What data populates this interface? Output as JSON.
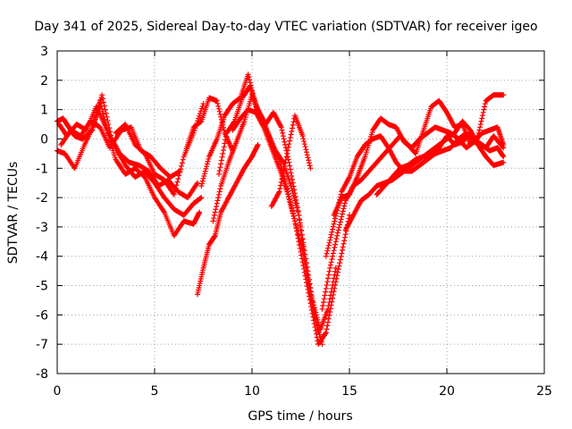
{
  "chart_data": {
    "type": "scatter",
    "title": "Day 341 of 2025, Sidereal Day-to-day VTEC variation (SDTVAR) for receiver igeo",
    "xlabel": "GPS time / hours",
    "ylabel": "SDTVAR / TECUs",
    "xlim": [
      0,
      25
    ],
    "ylim": [
      -8,
      3
    ],
    "xticks": [
      0,
      5,
      10,
      15,
      20,
      25
    ],
    "yticks": [
      -8,
      -7,
      -6,
      -5,
      -4,
      -3,
      -2,
      -1,
      0,
      1,
      2,
      3
    ],
    "grid": true,
    "marker": "+",
    "color": "#ff0000",
    "series": [
      {
        "x": [
          0.0,
          0.3,
          0.6,
          0.9,
          1.3,
          1.8,
          2.2,
          2.6,
          3.0,
          3.5,
          4.0,
          4.5,
          5.0,
          5.5,
          6.0,
          6.5,
          7.0,
          7.3
        ],
        "y": [
          0.6,
          0.7,
          0.4,
          0.1,
          0.0,
          0.3,
          1.3,
          0.2,
          -0.7,
          -1.2,
          -1.0,
          -1.3,
          -2.0,
          -2.5,
          -3.3,
          -2.8,
          -2.9,
          -2.5
        ]
      },
      {
        "x": [
          0.0,
          0.4,
          0.9,
          1.4,
          1.9,
          2.3,
          2.8,
          3.2,
          3.7,
          4.2,
          4.7,
          5.2,
          5.7,
          6.2,
          6.7,
          7.2
        ],
        "y": [
          -0.4,
          -0.5,
          -1.0,
          -0.2,
          0.5,
          1.5,
          0.0,
          -0.5,
          -0.8,
          -0.9,
          -1.1,
          -1.6,
          -1.4,
          -1.8,
          -2.0,
          -1.5
        ]
      },
      {
        "x": [
          0.1,
          0.5,
          1.0,
          1.5,
          2.0,
          2.5,
          3.0,
          3.5,
          4.0,
          4.5,
          5.0,
          5.5,
          6.0,
          6.5,
          7.0,
          7.4
        ],
        "y": [
          0.5,
          0.1,
          0.5,
          0.3,
          1.1,
          0.4,
          -0.3,
          -0.9,
          -1.3,
          -1.1,
          -1.5,
          -2.0,
          -2.4,
          -2.6,
          -2.2,
          -2.0
        ]
      },
      {
        "x": [
          0.2,
          0.7,
          1.2,
          1.7,
          2.2,
          2.7,
          3.3,
          3.8,
          4.3,
          4.8,
          5.3,
          5.8,
          6.3
        ],
        "y": [
          -0.2,
          0.3,
          0.1,
          0.6,
          0.4,
          -0.3,
          0.3,
          0.4,
          -0.4,
          -0.6,
          -1.0,
          -1.3,
          -1.1
        ]
      },
      {
        "x": [
          3.0,
          3.5,
          4.0,
          4.5,
          5.0,
          5.5,
          6.0,
          6.5,
          7.0,
          7.5
        ],
        "y": [
          0.2,
          0.5,
          -0.2,
          -0.5,
          -1.2,
          -1.4,
          -1.9,
          -0.6,
          0.2,
          1.2
        ]
      },
      {
        "x": [
          6.6,
          7.0,
          7.4,
          7.8,
          8.2,
          8.6,
          9.0
        ],
        "y": [
          -0.4,
          0.4,
          0.6,
          1.4,
          1.3,
          0.2,
          -0.4
        ]
      },
      {
        "x": [
          7.2,
          7.5,
          7.8,
          8.1,
          8.4,
          8.8,
          9.2,
          9.6,
          10.0,
          10.3
        ],
        "y": [
          -5.3,
          -4.4,
          -3.6,
          -3.3,
          -2.5,
          -2.0,
          -1.5,
          -1.0,
          -0.6,
          -0.2
        ]
      },
      {
        "x": [
          7.4,
          7.8,
          8.2,
          8.6,
          9.0,
          9.4,
          9.8,
          10.2,
          10.6,
          11.0,
          11.4,
          11.8,
          12.2,
          12.6,
          13.0,
          13.4,
          13.8,
          14.2,
          14.6,
          15.0
        ],
        "y": [
          -1.6,
          -0.6,
          0.0,
          0.8,
          1.2,
          1.4,
          2.2,
          1.1,
          0.6,
          -0.1,
          -0.7,
          -1.7,
          -2.8,
          -4.2,
          -5.6,
          -7.0,
          -6.6,
          -5.2,
          -3.9,
          -2.6
        ]
      },
      {
        "x": [
          8.0,
          8.4,
          8.8,
          9.2,
          9.6,
          10.0,
          10.4,
          10.8,
          11.2,
          11.6,
          12.0,
          12.4,
          12.8,
          13.2,
          13.6
        ],
        "y": [
          -2.8,
          -1.6,
          -0.8,
          -0.1,
          0.6,
          1.5,
          0.8,
          0.2,
          -0.4,
          -0.8,
          -1.6,
          -2.6,
          -4.6,
          -6.0,
          -7.0
        ]
      },
      {
        "x": [
          8.3,
          8.7,
          9.1,
          9.5,
          9.9,
          10.3,
          10.7,
          11.1,
          11.5,
          11.9,
          12.3,
          12.7,
          13.1,
          13.5,
          13.9,
          14.3
        ],
        "y": [
          -1.2,
          0.2,
          0.6,
          1.4,
          1.8,
          1.0,
          0.5,
          0.9,
          0.4,
          -0.8,
          -2.2,
          -3.8,
          -5.5,
          -6.5,
          -5.8,
          -4.4
        ]
      },
      {
        "x": [
          9.0,
          9.4,
          9.8,
          10.2,
          10.6,
          11.0,
          11.4,
          11.8,
          12.2,
          12.6,
          13.0,
          13.4
        ],
        "y": [
          0.3,
          0.7,
          1.0,
          0.9,
          0.4,
          -0.3,
          -1.0,
          -1.8,
          -2.8,
          -3.8,
          -5.2,
          -6.6
        ]
      },
      {
        "x": [
          11.0,
          11.4,
          11.8,
          12.2,
          12.6,
          13.0
        ],
        "y": [
          -2.3,
          -1.8,
          -0.5,
          0.8,
          0.1,
          -1.0
        ]
      },
      {
        "x": [
          13.6,
          14.0,
          14.4,
          14.8,
          15.2,
          15.6,
          16.0,
          16.4,
          16.8,
          17.2,
          17.6,
          18.0,
          18.4,
          18.8,
          19.2,
          19.6,
          20.0,
          20.4,
          20.8,
          21.2,
          21.6,
          22.0,
          22.4,
          22.9
        ],
        "y": [
          -5.8,
          -4.4,
          -3.2,
          -2.1,
          -1.6,
          -1.4,
          -1.1,
          -0.8,
          -0.5,
          -0.2,
          0.1,
          -0.2,
          -0.5,
          0.3,
          1.1,
          1.3,
          0.9,
          0.4,
          0.5,
          -0.2,
          0.1,
          1.3,
          1.5,
          1.5
        ]
      },
      {
        "x": [
          13.8,
          14.2,
          14.6,
          15.0,
          15.4,
          15.8,
          16.2,
          16.6,
          17.0,
          17.4,
          17.8,
          18.2,
          18.6,
          19.0,
          19.4,
          19.8,
          20.2,
          20.6,
          21.0,
          21.4,
          21.8,
          22.2,
          22.6,
          22.9
        ],
        "y": [
          -4.0,
          -2.9,
          -1.8,
          -1.3,
          -0.6,
          -0.2,
          0.0,
          0.1,
          -0.3,
          -0.8,
          -1.1,
          -1.1,
          -0.9,
          -0.7,
          -0.5,
          -0.4,
          -0.3,
          0.0,
          0.2,
          -0.1,
          -0.2,
          -0.4,
          -0.3,
          -0.6
        ]
      },
      {
        "x": [
          14.2,
          14.6,
          15.0,
          15.4,
          15.8,
          16.2,
          16.6,
          17.0,
          17.4,
          17.8,
          18.2,
          18.6,
          19.0,
          19.4,
          19.8,
          20.2,
          20.6,
          21.0,
          21.4,
          21.8,
          22.2,
          22.6,
          22.9
        ],
        "y": [
          -2.6,
          -2.0,
          -1.9,
          -1.3,
          -0.6,
          0.3,
          0.7,
          0.5,
          0.4,
          -0.1,
          -0.3,
          0.0,
          0.2,
          0.4,
          0.3,
          0.2,
          0.0,
          -0.3,
          -0.1,
          0.2,
          0.3,
          0.4,
          -0.2
        ]
      },
      {
        "x": [
          14.8,
          15.2,
          15.6,
          16.0,
          16.4,
          16.8,
          17.2,
          17.6,
          18.0,
          18.4,
          18.8,
          19.2,
          19.6,
          20.0,
          20.4,
          20.8,
          21.2,
          21.6,
          22.0,
          22.4,
          22.9
        ],
        "y": [
          -3.1,
          -2.6,
          -2.1,
          -1.9,
          -1.6,
          -1.5,
          -1.4,
          -1.2,
          -1.0,
          -0.8,
          -0.6,
          -0.4,
          -0.2,
          0.0,
          0.2,
          0.6,
          0.3,
          -0.2,
          -0.6,
          -0.9,
          -0.8
        ]
      },
      {
        "x": [
          16.4,
          16.8,
          17.2,
          17.6,
          18.0,
          18.4,
          18.8,
          19.2,
          19.6,
          20.0,
          20.4,
          20.8,
          21.2,
          21.6,
          22.0,
          22.4,
          22.9
        ],
        "y": [
          -1.9,
          -1.6,
          -1.3,
          -1.0,
          -0.9,
          -0.7,
          -0.6,
          -0.5,
          -0.3,
          0.1,
          -0.2,
          -0.1,
          0.2,
          -0.1,
          -0.3,
          0.1,
          -0.3
        ]
      }
    ]
  }
}
